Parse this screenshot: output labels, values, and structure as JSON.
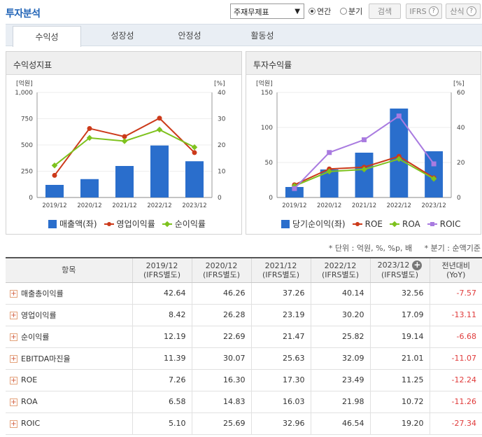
{
  "header": {
    "title": "투자분석",
    "select_value": "주재무제표",
    "radio_annual": "연간",
    "radio_quarter": "분기",
    "search_label": "검색",
    "ifrs_label": "IFRS",
    "formula_label": "산식"
  },
  "tabs": [
    "수익성",
    "성장성",
    "안정성",
    "활동성"
  ],
  "left_panel": {
    "title": "수익성지표",
    "left_unit": "[억원]",
    "right_unit": "[%]",
    "legend": [
      "매출액(좌)",
      "영업이익률",
      "순이익률"
    ]
  },
  "right_panel": {
    "title": "투자수익률",
    "left_unit": "[억원]",
    "right_unit": "[%]",
    "legend": [
      "당기순이익(좌)",
      "ROE",
      "ROA",
      "ROIC"
    ]
  },
  "notes": {
    "unit": "* 단위 : 억원, %, %p, 배",
    "quarter": "* 분기 : 순액기준"
  },
  "colors": {
    "bar": "#2a6ecc",
    "op_margin": "#cc3a1a",
    "net_margin": "#7ec21e",
    "roe": "#cc3a1a",
    "roa": "#7ec21e",
    "roic": "#a97be0"
  },
  "chart_data": [
    {
      "type": "bar",
      "categories": [
        "2019/12",
        "2020/12",
        "2021/12",
        "2022/12",
        "2023/12"
      ],
      "y_left_ticks": [
        "0",
        "250",
        "500",
        "750",
        "1,000"
      ],
      "y_right_ticks": [
        "0",
        "10",
        "20",
        "30",
        "40"
      ],
      "ylim_left": [
        0,
        1000
      ],
      "ylim_right": [
        0,
        40
      ],
      "series": [
        {
          "name": "매출액(좌)",
          "type": "bar",
          "axis": "left",
          "values": [
            120,
            175,
            300,
            495,
            345
          ]
        },
        {
          "name": "영업이익률",
          "type": "line",
          "axis": "right",
          "values": [
            8.42,
            26.28,
            23.19,
            30.2,
            17.09
          ]
        },
        {
          "name": "순이익률",
          "type": "line",
          "axis": "right",
          "values": [
            12.19,
            22.69,
            21.47,
            25.82,
            19.14
          ]
        }
      ]
    },
    {
      "type": "bar",
      "categories": [
        "2019/12",
        "2020/12",
        "2021/12",
        "2022/12",
        "2023/12"
      ],
      "y_left_ticks": [
        "0",
        "50",
        "100",
        "150"
      ],
      "y_right_ticks": [
        "0",
        "20",
        "40",
        "60"
      ],
      "ylim_left": [
        0,
        150
      ],
      "ylim_right": [
        0,
        60
      ],
      "series": [
        {
          "name": "당기순이익(좌)",
          "type": "bar",
          "axis": "left",
          "values": [
            15,
            40,
            64,
            127,
            66
          ]
        },
        {
          "name": "ROE",
          "type": "line",
          "axis": "right",
          "values": [
            7.26,
            16.3,
            17.3,
            23.49,
            11.25
          ]
        },
        {
          "name": "ROA",
          "type": "line",
          "axis": "right",
          "values": [
            6.58,
            14.83,
            16.03,
            21.98,
            10.72
          ]
        },
        {
          "name": "ROIC",
          "type": "line",
          "axis": "right",
          "values": [
            5.1,
            25.69,
            32.96,
            46.54,
            19.2
          ]
        }
      ]
    }
  ],
  "table": {
    "headers": [
      "항목",
      "2019/12\n(IFRS별도)",
      "2020/12\n(IFRS별도)",
      "2021/12\n(IFRS별도)",
      "2022/12\n(IFRS별도)",
      "2023/12\n(IFRS별도)",
      "전년대비\n(YoY)"
    ],
    "rows": [
      {
        "label": "매출총이익률",
        "values": [
          "42.64",
          "46.26",
          "37.26",
          "40.14",
          "32.56"
        ],
        "yoy": "-7.57"
      },
      {
        "label": "영업이익률",
        "values": [
          "8.42",
          "26.28",
          "23.19",
          "30.20",
          "17.09"
        ],
        "yoy": "-13.11"
      },
      {
        "label": "순이익률",
        "values": [
          "12.19",
          "22.69",
          "21.47",
          "25.82",
          "19.14"
        ],
        "yoy": "-6.68"
      },
      {
        "label": "EBITDA마진율",
        "values": [
          "11.39",
          "30.07",
          "25.63",
          "32.09",
          "21.01"
        ],
        "yoy": "-11.07"
      },
      {
        "label": "ROE",
        "values": [
          "7.26",
          "16.30",
          "17.30",
          "23.49",
          "11.25"
        ],
        "yoy": "-12.24"
      },
      {
        "label": "ROA",
        "values": [
          "6.58",
          "14.83",
          "16.03",
          "21.98",
          "10.72"
        ],
        "yoy": "-11.26"
      },
      {
        "label": "ROIC",
        "values": [
          "5.10",
          "25.69",
          "32.96",
          "46.54",
          "19.20"
        ],
        "yoy": "-27.34"
      }
    ]
  }
}
